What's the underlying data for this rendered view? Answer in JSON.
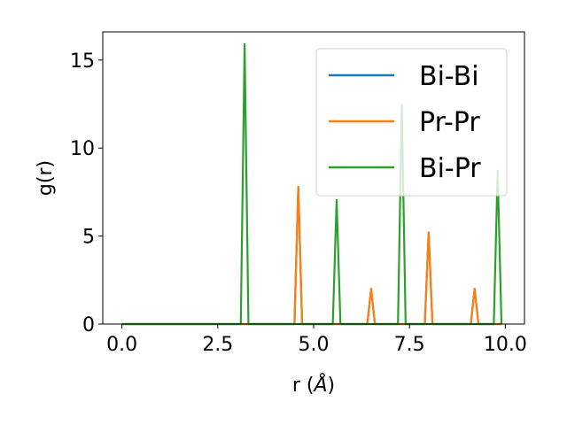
{
  "chart_data": {
    "type": "line",
    "xlabel_prefix": "r (",
    "xlabel_symbol": "Å",
    "xlabel_suffix": ")",
    "ylabel": "g(r)",
    "xlim": [
      -0.5,
      10.5
    ],
    "ylim": [
      0,
      16.6
    ],
    "xticks": [
      0.0,
      2.5,
      5.0,
      7.5,
      10.0
    ],
    "xtick_labels": [
      "0.0",
      "2.5",
      "5.0",
      "7.5",
      "10.0"
    ],
    "yticks": [
      0,
      5,
      10,
      15
    ],
    "ytick_labels": [
      "0",
      "5",
      "10",
      "15"
    ],
    "grid": false,
    "legend_position": "top-right",
    "series": [
      {
        "name": "Bi-Bi",
        "color": "#1f77b4",
        "x": [
          0.0,
          4.5,
          4.6,
          4.7,
          6.4,
          6.5,
          6.6,
          7.9,
          8.0,
          8.1,
          9.1,
          9.2,
          9.3,
          9.9
        ],
        "y": [
          0,
          0,
          7.8,
          0,
          0,
          2.0,
          0,
          0,
          5.2,
          0,
          0,
          2.0,
          0,
          0
        ]
      },
      {
        "name": "Pr-Pr",
        "color": "#ff7f0e",
        "x": [
          0.0,
          4.5,
          4.6,
          4.7,
          6.4,
          6.5,
          6.6,
          7.9,
          8.0,
          8.1,
          9.1,
          9.2,
          9.3,
          9.9
        ],
        "y": [
          0,
          0,
          7.8,
          0,
          0,
          2.0,
          0,
          0,
          5.2,
          0,
          0,
          2.0,
          0,
          0
        ]
      },
      {
        "name": "Bi-Pr",
        "color": "#2ca02c",
        "x": [
          0.0,
          3.1,
          3.2,
          3.3,
          5.5,
          5.6,
          5.7,
          7.2,
          7.3,
          7.4,
          9.7,
          9.8,
          9.9
        ],
        "y": [
          0,
          0,
          15.9,
          0,
          0,
          7.05,
          0,
          0,
          12.45,
          0,
          0,
          8.7,
          0
        ]
      }
    ]
  }
}
